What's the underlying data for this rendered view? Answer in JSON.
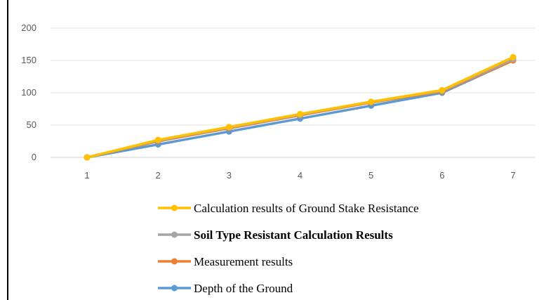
{
  "chart_data": {
    "type": "line",
    "title": "",
    "xlabel": "",
    "ylabel": "",
    "categories": [
      "1",
      "2",
      "3",
      "4",
      "5",
      "6",
      "7"
    ],
    "ylim": [
      0,
      200
    ],
    "yticks": [
      "0",
      "50",
      "100",
      "150",
      "200"
    ],
    "grid": "horizontal",
    "legend_position": "bottom",
    "series": [
      {
        "name": "Depth of the Ground",
        "color": "#5B9BD5",
        "values": [
          0,
          20,
          40,
          60,
          80,
          100,
          150
        ]
      },
      {
        "name": "Measurement results",
        "color": "#ED7D31",
        "values": [
          0,
          25,
          45,
          65,
          85,
          102,
          150
        ]
      },
      {
        "name": "Soil Type Resistant Calculation Results",
        "color": "#A5A5A5",
        "values": [
          0,
          26,
          46,
          66,
          86,
          103,
          152
        ]
      },
      {
        "name": "Calculation results of Ground Stake Resistance",
        "color": "#FFC000",
        "values": [
          0,
          27,
          47,
          67,
          86,
          104,
          155
        ]
      }
    ],
    "legend": [
      {
        "label": "Calculation results of Ground Stake Resistance",
        "color": "#FFC000",
        "bold": false
      },
      {
        "label": "Soil Type Resistant Calculation Results",
        "color": "#A5A5A5",
        "bold": true
      },
      {
        "label": "Measurement results",
        "color": "#ED7D31",
        "bold": false
      },
      {
        "label": "Depth of the Ground",
        "color": "#5B9BD5",
        "bold": false
      }
    ]
  }
}
